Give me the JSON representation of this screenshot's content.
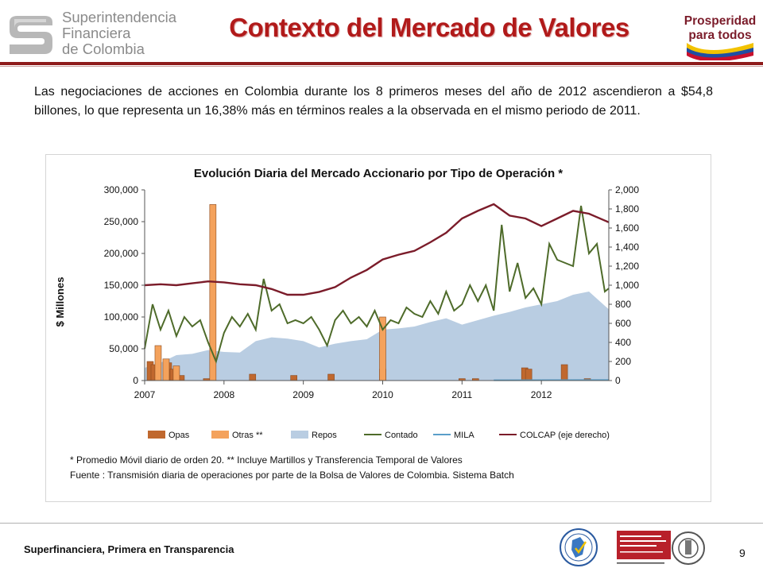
{
  "header": {
    "logo_lines": [
      "Superintendencia",
      "Financiera",
      "de Colombia"
    ],
    "title": "Contexto del Mercado de Valores",
    "logo_right_lines": [
      "Prosperidad",
      "para todos"
    ]
  },
  "intro": "Las negociaciones de acciones en Colombia durante los 8 primeros meses del año de 2012 ascendieron a $54,8 billones, lo que representa un 16,38% más en términos reales a la observada en el mismo periodo de 2011.",
  "chart_data": {
    "type": "area",
    "title": "Evolución Diaria del Mercado  Accionario por Tipo de Operación *",
    "ylabel": "$ Millones",
    "y2label": "",
    "ylim": [
      0,
      300000
    ],
    "y2lim": [
      0,
      2000
    ],
    "y_ticks": [
      "0",
      "50,000",
      "100,000",
      "150,000",
      "200,000",
      "250,000",
      "300,000"
    ],
    "y2_ticks": [
      "0",
      "200",
      "400",
      "600",
      "800",
      "1,000",
      "1,200",
      "1,400",
      "1,600",
      "1,800",
      "2,000"
    ],
    "x_ticks": [
      "2007",
      "2008",
      "2009",
      "2010",
      "2011",
      "2012"
    ],
    "xlim": [
      2007.0,
      2012.85
    ],
    "grid": false,
    "legend_position": "bottom",
    "series": [
      {
        "name": "Opas",
        "kind": "bar",
        "color": "#c0682e",
        "x": [
          2007.07,
          2007.12,
          2007.3,
          2007.36,
          2007.46,
          2007.78,
          2008.36,
          2008.88,
          2009.35,
          2010.0,
          2011.0,
          2011.17,
          2011.79,
          2011.84,
          2012.29,
          2012.58
        ],
        "values": [
          30000,
          25000,
          28000,
          18000,
          8000,
          3000,
          10000,
          8000,
          10000,
          18000,
          3000,
          3000,
          20000,
          18000,
          25000,
          3000
        ]
      },
      {
        "name": "Otras **",
        "kind": "bar",
        "color": "#f4a25c",
        "x": [
          2007.17,
          2007.27,
          2007.4,
          2007.86,
          2010.0
        ],
        "values": [
          55000,
          34000,
          23000,
          277000,
          100000
        ]
      },
      {
        "name": "Repos",
        "kind": "area",
        "color": "#b9cde2",
        "x": [
          2007.0,
          2007.2,
          2007.4,
          2007.6,
          2007.8,
          2008.0,
          2008.2,
          2008.4,
          2008.6,
          2008.8,
          2009.0,
          2009.2,
          2009.4,
          2009.6,
          2009.8,
          2010.0,
          2010.2,
          2010.4,
          2010.6,
          2010.8,
          2011.0,
          2011.2,
          2011.4,
          2011.6,
          2011.8,
          2012.0,
          2012.2,
          2012.4,
          2012.6,
          2012.85
        ],
        "values": [
          20000,
          28000,
          40000,
          42000,
          48000,
          45000,
          44000,
          62000,
          68000,
          66000,
          62000,
          52000,
          58000,
          62000,
          65000,
          80000,
          82000,
          85000,
          92000,
          98000,
          88000,
          95000,
          102000,
          108000,
          115000,
          120000,
          125000,
          135000,
          140000,
          112000
        ]
      },
      {
        "name": "Contado",
        "kind": "line",
        "color": "#4e6b2a",
        "x": [
          2007.0,
          2007.1,
          2007.2,
          2007.3,
          2007.4,
          2007.5,
          2007.6,
          2007.7,
          2007.8,
          2007.9,
          2008.0,
          2008.1,
          2008.2,
          2008.3,
          2008.4,
          2008.5,
          2008.6,
          2008.7,
          2008.8,
          2008.9,
          2009.0,
          2009.1,
          2009.2,
          2009.3,
          2009.4,
          2009.5,
          2009.6,
          2009.7,
          2009.8,
          2009.9,
          2010.0,
          2010.1,
          2010.2,
          2010.3,
          2010.4,
          2010.5,
          2010.6,
          2010.7,
          2010.8,
          2010.9,
          2011.0,
          2011.1,
          2011.2,
          2011.3,
          2011.4,
          2011.5,
          2011.6,
          2011.7,
          2011.8,
          2011.9,
          2012.0,
          2012.1,
          2012.2,
          2012.3,
          2012.4,
          2012.5,
          2012.6,
          2012.7,
          2012.8,
          2012.85
        ],
        "values": [
          50000,
          120000,
          80000,
          110000,
          70000,
          100000,
          85000,
          95000,
          60000,
          30000,
          75000,
          100000,
          85000,
          105000,
          80000,
          160000,
          110000,
          120000,
          90000,
          95000,
          90000,
          100000,
          80000,
          55000,
          95000,
          110000,
          90000,
          100000,
          85000,
          110000,
          80000,
          95000,
          90000,
          115000,
          105000,
          100000,
          125000,
          105000,
          140000,
          110000,
          120000,
          150000,
          125000,
          150000,
          110000,
          245000,
          140000,
          185000,
          130000,
          145000,
          120000,
          215000,
          190000,
          185000,
          180000,
          275000,
          200000,
          215000,
          140000,
          145000
        ]
      },
      {
        "name": "MILA",
        "kind": "line",
        "color": "#5a9ec9",
        "x": [
          2011.4,
          2012.85
        ],
        "values": [
          500,
          800
        ]
      },
      {
        "name": "COLCAP (eje derecho)",
        "kind": "line",
        "axis": "right",
        "color": "#7b1c2a",
        "x": [
          2007.0,
          2007.2,
          2007.4,
          2007.6,
          2007.8,
          2008.0,
          2008.2,
          2008.4,
          2008.6,
          2008.8,
          2009.0,
          2009.2,
          2009.4,
          2009.6,
          2009.8,
          2010.0,
          2010.2,
          2010.4,
          2010.6,
          2010.8,
          2011.0,
          2011.2,
          2011.4,
          2011.6,
          2011.8,
          2012.0,
          2012.2,
          2012.4,
          2012.6,
          2012.85
        ],
        "values": [
          1000,
          1010,
          1000,
          1020,
          1040,
          1030,
          1010,
          1000,
          960,
          900,
          900,
          930,
          980,
          1080,
          1160,
          1270,
          1320,
          1360,
          1450,
          1550,
          1700,
          1780,
          1850,
          1730,
          1700,
          1620,
          1700,
          1780,
          1750,
          1660
        ]
      }
    ],
    "notes": [
      "* Promedio Móvil diario de orden  20.   ** Incluye Martillos y Transferencia Temporal de Valores",
      "Fuente :  Transmisión diaria de operaciones por parte de la Bolsa de Valores de Colombia. Sistema Batch"
    ]
  },
  "footer": {
    "slogan": "Superfinanciera, Primera en Transparencia",
    "page_number": "9"
  }
}
